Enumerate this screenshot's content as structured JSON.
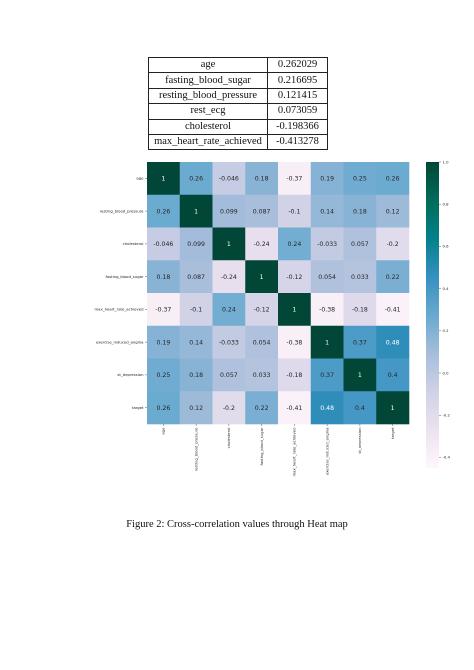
{
  "correlation_table": {
    "rows": [
      {
        "feature": "age",
        "value": "0.262029"
      },
      {
        "feature": "fasting_blood_sugar",
        "value": "0.216695"
      },
      {
        "feature": "resting_blood_pressure",
        "value": "0.121415"
      },
      {
        "feature": "rest_ecg",
        "value": "0.073059"
      },
      {
        "feature": "cholesterol",
        "value": "-0.198366"
      },
      {
        "feature": "max_heart_rate_achieved",
        "value": "-0.413278"
      }
    ]
  },
  "caption": "Figure 2: Cross-correlation values through Heat map",
  "chart_data": {
    "type": "heatmap",
    "title": "",
    "labels": [
      "age",
      "resting_blood_pressure",
      "cholesterol",
      "fasting_blood_sugar",
      "max_heart_rate_achieved",
      "exercise_induced_angina",
      "st_depression",
      "target"
    ],
    "values": [
      [
        1,
        0.26,
        -0.046,
        0.18,
        -0.37,
        0.19,
        0.25,
        0.26
      ],
      [
        0.26,
        1,
        0.099,
        0.087,
        -0.1,
        0.14,
        0.18,
        0.12
      ],
      [
        -0.046,
        0.099,
        1,
        -0.24,
        0.24,
        -0.033,
        0.057,
        -0.2
      ],
      [
        0.18,
        0.087,
        -0.24,
        1,
        -0.12,
        0.054,
        0.033,
        0.22
      ],
      [
        -0.37,
        -0.1,
        0.24,
        -0.12,
        1,
        -0.38,
        -0.18,
        -0.41
      ],
      [
        0.19,
        0.14,
        -0.033,
        0.054,
        -0.38,
        1,
        0.37,
        0.48
      ],
      [
        0.25,
        0.18,
        0.057,
        0.033,
        -0.18,
        0.37,
        1,
        0.4
      ],
      [
        0.26,
        0.12,
        -0.2,
        0.22,
        -0.41,
        0.48,
        0.4,
        1
      ]
    ],
    "colorbar": {
      "range": [
        -0.45,
        1.0
      ],
      "ticks": [
        1.0,
        0.8,
        0.6,
        0.4,
        0.2,
        0.0,
        -0.2,
        -0.4
      ],
      "tick_labels": [
        "1.0",
        "0.8",
        "0.6",
        "0.4",
        "0.2",
        "0.0",
        "-0.2",
        "-0.4"
      ],
      "colormap": "PuBuGn",
      "colors": [
        "#fff7fb",
        "#ece2f0",
        "#d0d1e6",
        "#a6bddb",
        "#67a9cf",
        "#3690c0",
        "#02818a",
        "#016c59",
        "#014636"
      ]
    },
    "annotate": true
  }
}
